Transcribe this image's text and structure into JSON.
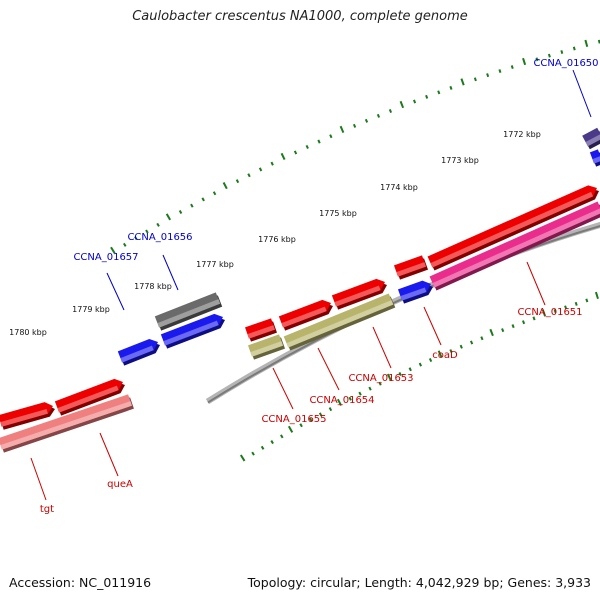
{
  "title": "Caulobacter crescentus NA1000, complete genome",
  "footer": {
    "accession": "Accession: NC_011916",
    "info": "Topology: circular; Length: 4,042,929 bp; Genes: 3,933"
  },
  "colors": {
    "backbone": "#8a8a8a",
    "scale_ticks": "#1c7a1c",
    "cds_forward": "#ee0000",
    "cds_reverse": "#1a1aee",
    "gene_gray": "#6a6a6a",
    "gene_pink": "#ea2d8c",
    "gene_salmon": "#f08080",
    "gene_khaki": "#b8b46c",
    "gene_purple": "#4a3a88",
    "label_blue": "#0000cc",
    "label_red": "#cc0000"
  },
  "scale_labels": [
    "1772 kbp",
    "1773 kbp",
    "1774 kbp",
    "1775 kbp",
    "1776 kbp",
    "1777 kbp",
    "1778 kbp",
    "1779 kbp",
    "1780 kbp"
  ],
  "gene_labels": [
    {
      "text": "CCNA_01650",
      "color": "blue"
    },
    {
      "text": "CCNA_01651",
      "color": "red"
    },
    {
      "text": "coaD",
      "color": "red"
    },
    {
      "text": "CCNA_01653",
      "color": "red"
    },
    {
      "text": "CCNA_01654",
      "color": "red"
    },
    {
      "text": "CCNA_01655",
      "color": "red"
    },
    {
      "text": "CCNA_01656",
      "color": "blue"
    },
    {
      "text": "CCNA_01657",
      "color": "blue"
    },
    {
      "text": "queA",
      "color": "red"
    },
    {
      "text": "tgt",
      "color": "red"
    }
  ]
}
